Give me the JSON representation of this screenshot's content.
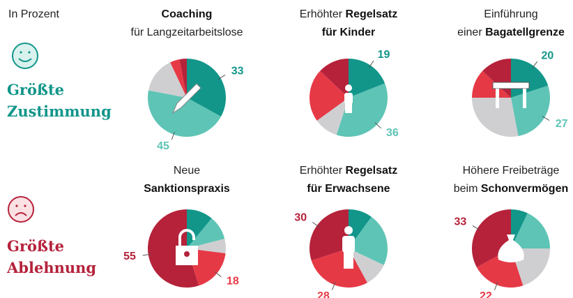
{
  "note": "In Prozent",
  "groups": [
    {
      "label": [
        "Größte",
        "Zustimmung"
      ],
      "color": "#12968a"
    },
    {
      "label": [
        "Größte",
        "Ablehnung"
      ],
      "color": "#b5223a"
    }
  ],
  "chart_data": [
    {
      "type": "pie",
      "group": 0,
      "title_lines": [
        [
          {
            "text": "Coaching",
            "bold": true
          }
        ],
        [
          {
            "text": "für Langzeitarbeitslose",
            "bold": false
          }
        ]
      ],
      "values": [
        33,
        45,
        15,
        4,
        3
      ],
      "value_labels": [
        "33",
        "45",
        null,
        null,
        null
      ],
      "colors": [
        "#12968a",
        "#5ec4b6",
        "#cfcfd2",
        "#e63946",
        "#b5223a"
      ],
      "icon": "pen"
    },
    {
      "type": "pie",
      "group": 0,
      "title_lines": [
        [
          {
            "text": "Erhöhter ",
            "bold": false
          },
          {
            "text": "Regelsatz",
            "bold": true
          }
        ],
        [
          {
            "text": "für Kinder",
            "bold": true
          }
        ]
      ],
      "values": [
        19,
        36,
        10,
        22,
        13
      ],
      "value_labels": [
        "19",
        "36",
        null,
        null,
        null
      ],
      "colors": [
        "#12968a",
        "#5ec4b6",
        "#cfcfd2",
        "#e63946",
        "#b5223a"
      ],
      "icon": "child"
    },
    {
      "type": "pie",
      "group": 0,
      "title_lines": [
        [
          {
            "text": "Einführung",
            "bold": false
          }
        ],
        [
          {
            "text": "einer ",
            "bold": false
          },
          {
            "text": "Bagatellgrenze",
            "bold": true
          }
        ]
      ],
      "values": [
        20,
        27,
        28,
        12,
        13
      ],
      "value_labels": [
        "20",
        "27",
        null,
        null,
        null
      ],
      "colors": [
        "#12968a",
        "#5ec4b6",
        "#cfcfd2",
        "#e63946",
        "#b5223a"
      ],
      "icon": "barrier"
    },
    {
      "type": "pie",
      "group": 1,
      "title_lines": [
        [
          {
            "text": "Neue",
            "bold": false
          }
        ],
        [
          {
            "text": "Sanktionspraxis",
            "bold": true
          }
        ]
      ],
      "values": [
        11,
        10,
        6,
        18,
        55
      ],
      "value_labels": [
        null,
        null,
        null,
        "18",
        "55"
      ],
      "colors": [
        "#12968a",
        "#5ec4b6",
        "#cfcfd2",
        "#e63946",
        "#b5223a"
      ],
      "icon": "lock"
    },
    {
      "type": "pie",
      "group": 1,
      "title_lines": [
        [
          {
            "text": "Erhöhter ",
            "bold": false
          },
          {
            "text": "Regelsatz",
            "bold": true
          }
        ],
        [
          {
            "text": "für Erwachsene",
            "bold": true
          }
        ]
      ],
      "values": [
        10,
        22,
        10,
        28,
        30
      ],
      "value_labels": [
        null,
        null,
        null,
        "28",
        "30"
      ],
      "colors": [
        "#12968a",
        "#5ec4b6",
        "#cfcfd2",
        "#e63946",
        "#b5223a"
      ],
      "icon": "adult"
    },
    {
      "type": "pie",
      "group": 1,
      "title_lines": [
        [
          {
            "text": "Höhere Freibeträge",
            "bold": false
          }
        ],
        [
          {
            "text": "beim ",
            "bold": false
          },
          {
            "text": "Schonvermögen",
            "bold": true
          }
        ]
      ],
      "values": [
        7,
        18,
        20,
        22,
        33
      ],
      "value_labels": [
        null,
        null,
        null,
        "22",
        "33"
      ],
      "colors": [
        "#12968a",
        "#5ec4b6",
        "#cfcfd2",
        "#e63946",
        "#b5223a"
      ],
      "icon": "sack"
    }
  ]
}
